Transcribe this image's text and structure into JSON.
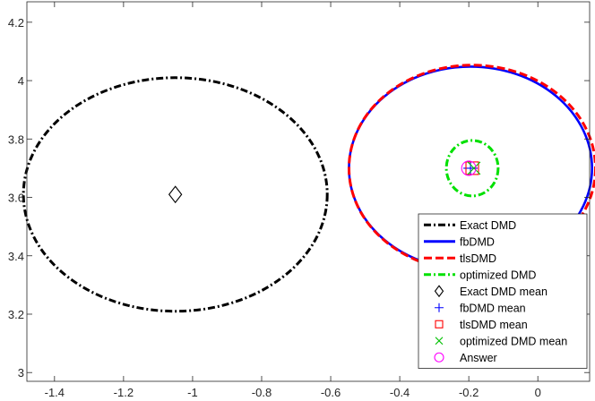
{
  "chart_data": {
    "type": "scatter",
    "title": "",
    "xlabel": "",
    "ylabel": "",
    "xlim": [
      -1.48,
      0.15
    ],
    "ylim": [
      2.97,
      4.27
    ],
    "x_ticks": [
      -1.4,
      -1.2,
      -1,
      -0.8,
      -0.6,
      -0.4,
      -0.2,
      0
    ],
    "x_tick_labels": [
      "-1.4",
      "-1.2",
      "-1",
      "-0.8",
      "-0.6",
      "-0.4",
      "-0.2",
      "0"
    ],
    "y_ticks": [
      3,
      3.2,
      3.4,
      3.6,
      3.8,
      4,
      4.2
    ],
    "y_tick_labels": [
      "3",
      "3.2",
      "3.4",
      "3.6",
      "3.8",
      "4",
      "4.2"
    ],
    "grid": false,
    "legend_position": "bottom-right",
    "ellipses": [
      {
        "name": "Exact DMD",
        "cx": -1.05,
        "cy": 3.61,
        "rx": 0.44,
        "ry": 0.4,
        "color": "#000000",
        "style": "dash-dot"
      },
      {
        "name": "fbDMD",
        "cx": -0.195,
        "cy": 3.7,
        "rx": 0.352,
        "ry": 0.348,
        "color": "#0000ff",
        "style": "solid"
      },
      {
        "name": "tlsDMD",
        "cx": -0.19,
        "cy": 3.7,
        "rx": 0.357,
        "ry": 0.353,
        "color": "#ff0000",
        "style": "dashed"
      },
      {
        "name": "optimized DMD",
        "cx": -0.19,
        "cy": 3.7,
        "rx": 0.075,
        "ry": 0.095,
        "color": "#00e000",
        "style": "dash-dot"
      }
    ],
    "points": [
      {
        "name": "Exact DMD mean",
        "x": -1.05,
        "y": 3.61,
        "marker": "diamond",
        "color": "#000000"
      },
      {
        "name": "fbDMD mean",
        "x": -0.195,
        "y": 3.7,
        "marker": "plus",
        "color": "#0000ff"
      },
      {
        "name": "tlsDMD mean",
        "x": -0.19,
        "y": 3.7,
        "marker": "square",
        "color": "#ff0000"
      },
      {
        "name": "optimized DMD mean",
        "x": -0.185,
        "y": 3.7,
        "marker": "x",
        "color": "#00c000"
      },
      {
        "name": "Answer",
        "x": -0.2,
        "y": 3.7,
        "marker": "circle",
        "color": "#ff00ff"
      }
    ],
    "legend": [
      {
        "label": "Exact DMD",
        "kind": "line",
        "style": "dash-dot",
        "color": "#000000"
      },
      {
        "label": "fbDMD",
        "kind": "line",
        "style": "solid",
        "color": "#0000ff"
      },
      {
        "label": "tlsDMD",
        "kind": "line",
        "style": "dashed",
        "color": "#ff0000"
      },
      {
        "label": "optimized DMD",
        "kind": "line",
        "style": "dash-dot",
        "color": "#00e000"
      },
      {
        "label": "Exact DMD mean",
        "kind": "marker",
        "marker": "diamond",
        "color": "#000000"
      },
      {
        "label": "fbDMD mean",
        "kind": "marker",
        "marker": "plus",
        "color": "#0000ff"
      },
      {
        "label": "tlsDMD mean",
        "kind": "marker",
        "marker": "square",
        "color": "#ff0000"
      },
      {
        "label": "optimized DMD mean",
        "kind": "marker",
        "marker": "x",
        "color": "#00c000"
      },
      {
        "label": "Answer",
        "kind": "marker",
        "marker": "circle",
        "color": "#ff00ff"
      }
    ]
  }
}
